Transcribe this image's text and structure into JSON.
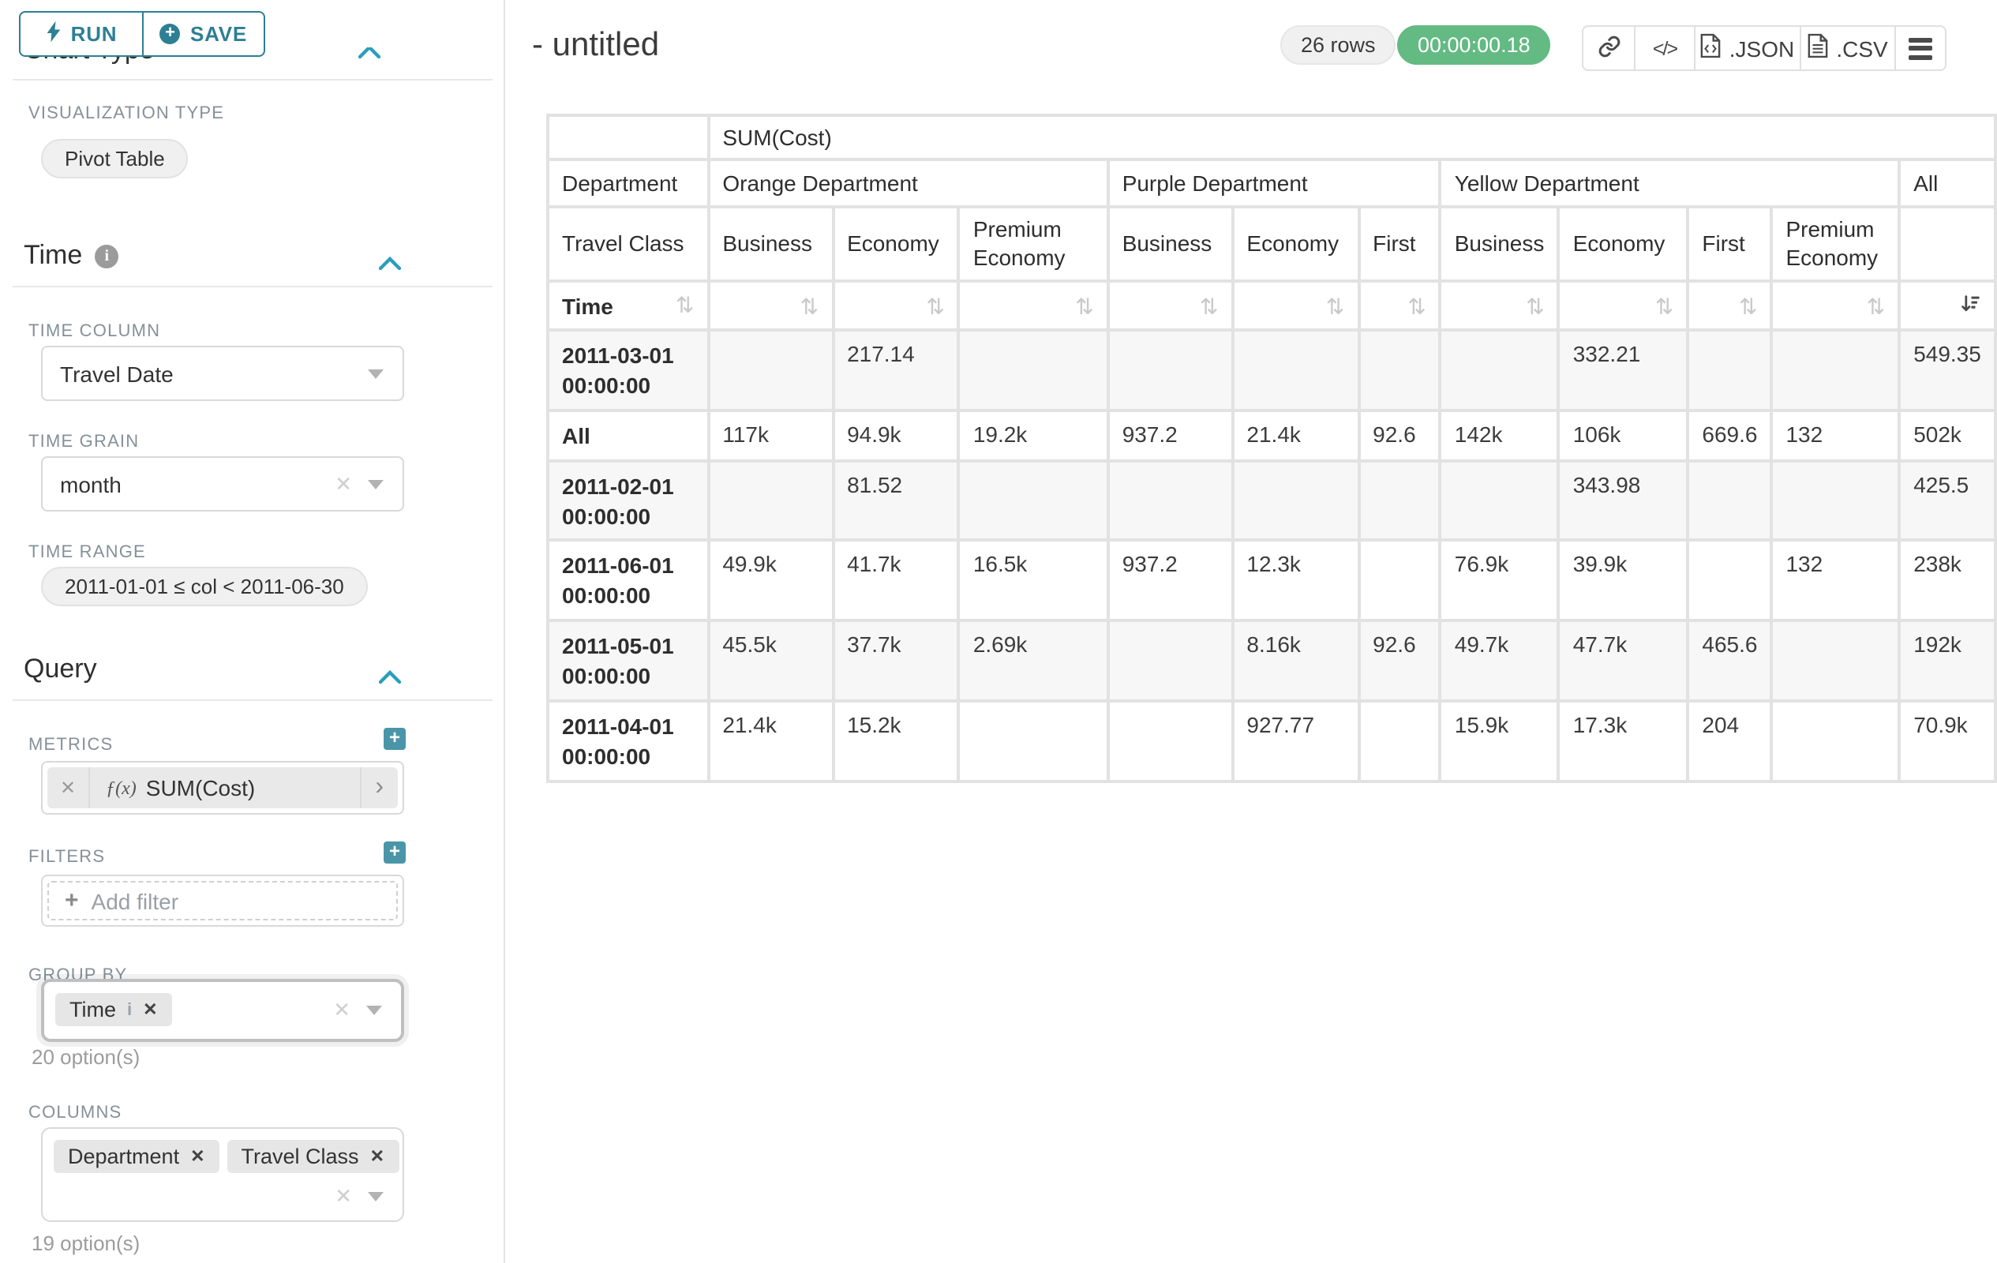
{
  "colors": {
    "primary_teal": "#2d7f93",
    "accent_teal": "#2b9dbd",
    "plus_button_teal": "#4a96a8",
    "timer_green": "#63ba83",
    "label_gray": "#859099",
    "grid_gray": "#e2e2e2"
  },
  "icons": {
    "run": "lightning-bolt-icon",
    "save": "plus-circle-icon",
    "section_info": "info-circle-icon",
    "section_collapse": "chevron-up-icon",
    "select_caret": "caret-down-icon",
    "select_clear": "x-clear-icon",
    "metric_remove": "x-clear-icon",
    "metric_expand": "chevron-right-icon",
    "add": "plus-square-icon",
    "share": "link-chain-icon",
    "embed": "code-brackets-icon",
    "export_json": "file-code-icon",
    "export_csv": "file-lines-icon",
    "menu": "hamburger-menu-icon",
    "sortable": "sort-arrows-icon",
    "sorted_desc": "sort-amount-desc-icon"
  },
  "sidebar": {
    "run_label": "RUN",
    "save_label": "SAVE",
    "chart_type_section": "Chart Type",
    "viz_type_label": "VISUALIZATION TYPE",
    "viz_type_value": "Pivot Table",
    "time_section": "Time",
    "time_column_label": "TIME COLUMN",
    "time_column_value": "Travel Date",
    "time_grain_label": "TIME GRAIN",
    "time_grain_value": "month",
    "time_range_label": "TIME RANGE",
    "time_range_value": "2011-01-01 ≤ col < 2011-06-30",
    "query_section": "Query",
    "metrics_label": "METRICS",
    "metric_fx": "ƒ(x)",
    "metric_value": "SUM(Cost)",
    "filters_label": "FILTERS",
    "add_filter_label": "Add filter",
    "group_by_label": "GROUP BY",
    "group_by_tags": [
      "Time"
    ],
    "group_by_options": "20 option(s)",
    "columns_label": "COLUMNS",
    "columns_tags": [
      "Department",
      "Travel Class"
    ],
    "columns_options": "19 option(s)"
  },
  "header": {
    "title": "- untitled",
    "row_count": "26 rows",
    "timer": "00:00:00.18",
    "export_json_label": ".JSON",
    "export_csv_label": ".CSV"
  },
  "pivot_table": {
    "metric_header": "SUM(Cost)",
    "corner_labels": {
      "dimension": "Department",
      "subdimension": "Travel Class",
      "row": "Time"
    },
    "column_groups": [
      {
        "label": "Orange Department",
        "children": [
          "Business",
          "Economy",
          "Premium Economy"
        ]
      },
      {
        "label": "Purple Department",
        "children": [
          "Business",
          "Economy",
          "First"
        ]
      },
      {
        "label": "Yellow Department",
        "children": [
          "Business",
          "Economy",
          "First",
          "Premium Economy"
        ]
      },
      {
        "label": "All",
        "children": [
          ""
        ]
      }
    ],
    "rows": [
      {
        "label": "2011-03-01 00:00:00",
        "cells": [
          "",
          "217.14",
          "",
          "",
          "",
          "",
          "",
          "332.21",
          "",
          "",
          "549.35"
        ]
      },
      {
        "label": "All",
        "cells": [
          "117k",
          "94.9k",
          "19.2k",
          "937.2",
          "21.4k",
          "92.6",
          "142k",
          "106k",
          "669.6",
          "132",
          "502k"
        ]
      },
      {
        "label": "2011-02-01 00:00:00",
        "cells": [
          "",
          "81.52",
          "",
          "",
          "",
          "",
          "",
          "343.98",
          "",
          "",
          "425.5"
        ]
      },
      {
        "label": "2011-06-01 00:00:00",
        "cells": [
          "49.9k",
          "41.7k",
          "16.5k",
          "937.2",
          "12.3k",
          "",
          "76.9k",
          "39.9k",
          "",
          "132",
          "238k"
        ]
      },
      {
        "label": "2011-05-01 00:00:00",
        "cells": [
          "45.5k",
          "37.7k",
          "2.69k",
          "",
          "8.16k",
          "92.6",
          "49.7k",
          "47.7k",
          "465.6",
          "",
          "192k"
        ]
      },
      {
        "label": "2011-04-01 00:00:00",
        "cells": [
          "21.4k",
          "15.2k",
          "",
          "",
          "927.77",
          "",
          "15.9k",
          "17.3k",
          "204",
          "",
          "70.9k"
        ]
      }
    ]
  }
}
